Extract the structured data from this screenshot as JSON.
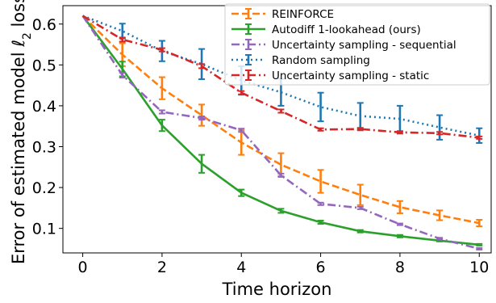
{
  "chart_data": {
    "type": "line",
    "xlabel": "Time horizon",
    "ylabel": "Error of estimated model ℓ2 loss",
    "xlim": [
      -0.5,
      10.3
    ],
    "ylim": [
      0.04,
      0.645
    ],
    "xticks": [
      0,
      2,
      4,
      6,
      8,
      10
    ],
    "yticks": [
      0.1,
      0.2,
      0.3,
      0.4,
      0.5,
      0.6
    ],
    "grid": false,
    "legend_position": "top-right",
    "x": [
      0,
      1,
      2,
      3,
      4,
      5,
      6,
      7,
      8,
      9,
      10
    ],
    "series": [
      {
        "name": "REINFORCE",
        "color": "#ff7f0e",
        "style": "dashed",
        "values": [
          0.62,
          0.525,
          0.443,
          0.377,
          0.31,
          0.256,
          0.215,
          0.182,
          0.152,
          0.132,
          0.113
        ],
        "errors": [
          0.0,
          0.028,
          0.027,
          0.026,
          0.03,
          0.028,
          0.028,
          0.025,
          0.015,
          0.012,
          0.008
        ]
      },
      {
        "name": "Autodiff 1-lookahead (ours)",
        "color": "#2ca02c",
        "style": "solid",
        "values": [
          0.62,
          0.49,
          0.352,
          0.258,
          0.187,
          0.143,
          0.115,
          0.093,
          0.081,
          0.07,
          0.06
        ],
        "errors": [
          0.0,
          0.018,
          0.014,
          0.022,
          0.008,
          0.005,
          0.004,
          0.003,
          0.003,
          0.002,
          0.002
        ]
      },
      {
        "name": "Uncertainty sampling - sequential",
        "color": "#9467bd",
        "style": "dashdot",
        "values": [
          0.62,
          0.475,
          0.385,
          0.37,
          0.34,
          0.23,
          0.16,
          0.15,
          0.11,
          0.075,
          0.05
        ],
        "errors": [
          0.0,
          0.006,
          0.004,
          0.004,
          0.004,
          0.004,
          0.003,
          0.003,
          0.002,
          0.002,
          0.002
        ]
      },
      {
        "name": "Random sampling",
        "color": "#1f77b4",
        "style": "dotted",
        "values": [
          0.62,
          0.583,
          0.534,
          0.502,
          0.462,
          0.433,
          0.397,
          0.375,
          0.368,
          0.347,
          0.327
        ],
        "errors": [
          0.0,
          0.018,
          0.025,
          0.037,
          0.035,
          0.033,
          0.035,
          0.032,
          0.032,
          0.03,
          0.018
        ]
      },
      {
        "name": "Uncertainty sampling - static",
        "color": "#d62728",
        "style": "dashdot",
        "values": [
          0.62,
          0.562,
          0.537,
          0.497,
          0.432,
          0.387,
          0.342,
          0.343,
          0.335,
          0.333,
          0.322
        ],
        "errors": [
          0.0,
          0.005,
          0.004,
          0.005,
          0.004,
          0.004,
          0.003,
          0.003,
          0.003,
          0.003,
          0.003
        ]
      }
    ]
  }
}
